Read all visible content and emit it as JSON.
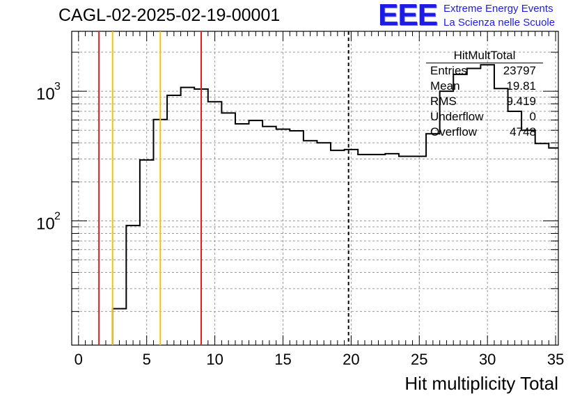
{
  "run_title": "CAGL-02-2025-02-19-00001",
  "logo": {
    "text": "EEE",
    "line1": "Extreme Energy Events",
    "line2": "La Scienza nelle Scuole",
    "color": "#1c1ce6"
  },
  "stats_box": {
    "title": "HitMultTotal",
    "rows": [
      {
        "label": "Entries",
        "value": "23797"
      },
      {
        "label": "Mean",
        "value": "19.81"
      },
      {
        "label": "RMS",
        "value": "9.419"
      },
      {
        "label": "Underflow",
        "value": "0"
      },
      {
        "label": "Overflow",
        "value": "4748"
      }
    ]
  },
  "chart_data": {
    "type": "histogram",
    "title": "CAGL-02-2025-02-19-00001",
    "xlabel": "Hit multiplicity Total",
    "ylabel": "",
    "xlim": [
      -0.5,
      35.2
    ],
    "ylim": [
      11,
      2900
    ],
    "yscale": "log",
    "grid": true,
    "x_ticks": [
      0,
      5,
      10,
      15,
      20,
      25,
      30,
      35
    ],
    "y_tick_labels": [
      {
        "value": 100,
        "label": "10",
        "exponent": "2"
      },
      {
        "value": 1000,
        "label": "10",
        "exponent": "3"
      }
    ],
    "bin_edges": [
      2.5,
      3.5,
      4.5,
      5.5,
      6.5,
      7.5,
      8.5,
      9.5,
      10.5,
      11.5,
      12.5,
      13.5,
      14.5,
      15.5,
      16.5,
      17.5,
      18.5,
      19.5,
      20.5,
      21.5,
      22.5,
      23.5,
      24.5,
      25.5,
      26.5,
      27.5,
      28.5,
      29.5,
      30.5,
      31.5,
      32.5,
      33.5,
      34.5,
      35.2
    ],
    "bin_values": [
      21,
      92,
      295,
      605,
      930,
      1070,
      1040,
      830,
      680,
      560,
      595,
      535,
      510,
      495,
      415,
      400,
      350,
      355,
      325,
      325,
      330,
      315,
      315,
      470,
      1000,
      1350,
      1500,
      1600,
      1050,
      700,
      500,
      395,
      365
    ],
    "vlines": [
      {
        "x": 1.5,
        "color": "#e8191c",
        "style": "solid"
      },
      {
        "x": 2.5,
        "color": "#f5c400",
        "style": "solid"
      },
      {
        "x": 6.0,
        "color": "#f5c400",
        "style": "solid"
      },
      {
        "x": 9.0,
        "color": "#e8191c",
        "style": "solid"
      },
      {
        "x": 19.81,
        "color": "#000000",
        "style": "dashed"
      }
    ],
    "line_color": "#000000"
  }
}
